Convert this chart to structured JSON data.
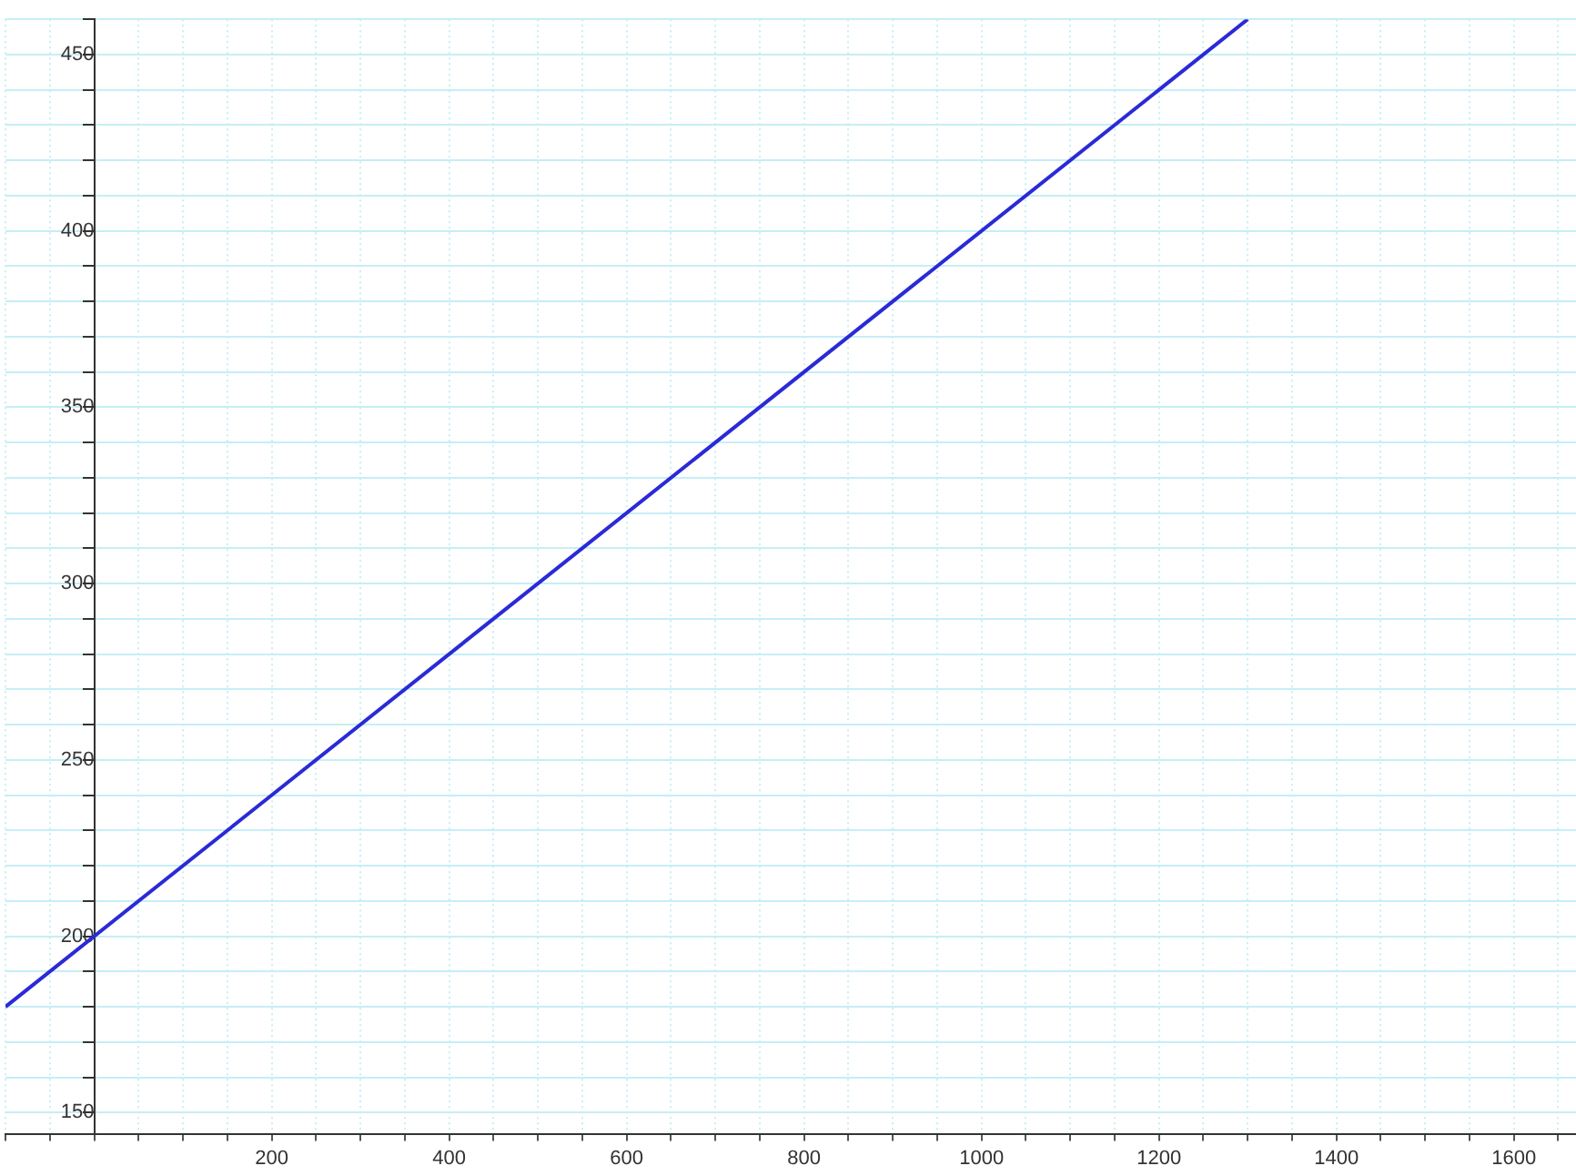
{
  "chart_data": {
    "type": "line",
    "x": [
      -100,
      1300
    ],
    "series": [
      {
        "color": "#2a2ad6",
        "values": [
          180,
          460
        ]
      }
    ],
    "xlim": [
      -100,
      1670
    ],
    "ylim": [
      144,
      460
    ],
    "xticks": [
      {
        "value": -100,
        "label": null
      },
      {
        "value": -50,
        "label": null
      },
      {
        "value": 0,
        "label": null
      },
      {
        "value": 50,
        "label": null
      },
      {
        "value": 100,
        "label": null
      },
      {
        "value": 150,
        "label": null
      },
      200,
      {
        "value": 250,
        "label": null
      },
      {
        "value": 300,
        "label": null
      },
      {
        "value": 350,
        "label": null
      },
      400,
      {
        "value": 450,
        "label": null
      },
      {
        "value": 500,
        "label": null
      },
      {
        "value": 550,
        "label": null
      },
      600,
      {
        "value": 650,
        "label": null
      },
      {
        "value": 700,
        "label": null
      },
      {
        "value": 750,
        "label": null
      },
      800,
      {
        "value": 850,
        "label": null
      },
      {
        "value": 900,
        "label": null
      },
      {
        "value": 950,
        "label": null
      },
      1000,
      {
        "value": 1050,
        "label": null
      },
      {
        "value": 1100,
        "label": null
      },
      {
        "value": 1150,
        "label": null
      },
      1200,
      {
        "value": 1250,
        "label": null
      },
      {
        "value": 1300,
        "label": null
      },
      {
        "value": 1350,
        "label": null
      },
      1400,
      {
        "value": 1450,
        "label": null
      },
      {
        "value": 1500,
        "label": null
      },
      {
        "value": 1550,
        "label": null
      },
      1600,
      {
        "value": 1650,
        "label": null
      }
    ],
    "yticks": [
      150,
      {
        "value": 160,
        "label": null
      },
      {
        "value": 170,
        "label": null
      },
      {
        "value": 180,
        "label": null
      },
      {
        "value": 190,
        "label": null
      },
      200,
      {
        "value": 210,
        "label": null
      },
      {
        "value": 220,
        "label": null
      },
      {
        "value": 230,
        "label": null
      },
      {
        "value": 240,
        "label": null
      },
      250,
      {
        "value": 260,
        "label": null
      },
      {
        "value": 270,
        "label": null
      },
      {
        "value": 280,
        "label": null
      },
      {
        "value": 290,
        "label": null
      },
      300,
      {
        "value": 310,
        "label": null
      },
      {
        "value": 320,
        "label": null
      },
      {
        "value": 330,
        "label": null
      },
      {
        "value": 340,
        "label": null
      },
      350,
      {
        "value": 360,
        "label": null
      },
      {
        "value": 370,
        "label": null
      },
      {
        "value": 380,
        "label": null
      },
      {
        "value": 390,
        "label": null
      },
      400,
      {
        "value": 410,
        "label": null
      },
      {
        "value": 420,
        "label": null
      },
      {
        "value": 430,
        "label": null
      },
      {
        "value": 440,
        "label": null
      },
      450,
      {
        "value": 460,
        "label": null
      }
    ],
    "grid": true,
    "legend": false,
    "marker": "none",
    "line_style": "solid"
  }
}
